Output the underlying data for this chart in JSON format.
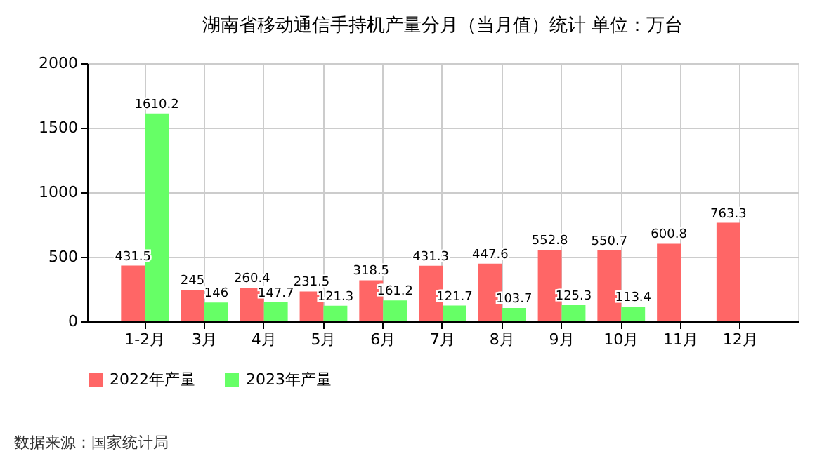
{
  "chart_data": {
    "type": "bar",
    "title": "湖南省移动通信手持机产量分月（当月值）统计 单位：万台",
    "categories": [
      "1-2月",
      "3月",
      "4月",
      "5月",
      "6月",
      "7月",
      "8月",
      "9月",
      "10月",
      "11月",
      "12月"
    ],
    "series": [
      {
        "name": "2022年产量",
        "color": "#ff6666",
        "values": [
          431.5,
          245,
          260.4,
          231.5,
          318.5,
          431.3,
          447.6,
          552.8,
          550.7,
          600.8,
          763.3
        ]
      },
      {
        "name": "2023年产量",
        "color": "#66ff66",
        "values": [
          1610.2,
          146,
          147.7,
          121.3,
          161.2,
          121.7,
          103.7,
          125.3,
          113.4,
          null,
          null
        ]
      }
    ],
    "ylim": [
      0,
      2000
    ],
    "yticks": [
      0,
      500,
      1000,
      1500,
      2000
    ],
    "grid": true,
    "legend": "bottom",
    "data_labels": true,
    "annotations": [
      "数据来源：国家统计局"
    ]
  }
}
